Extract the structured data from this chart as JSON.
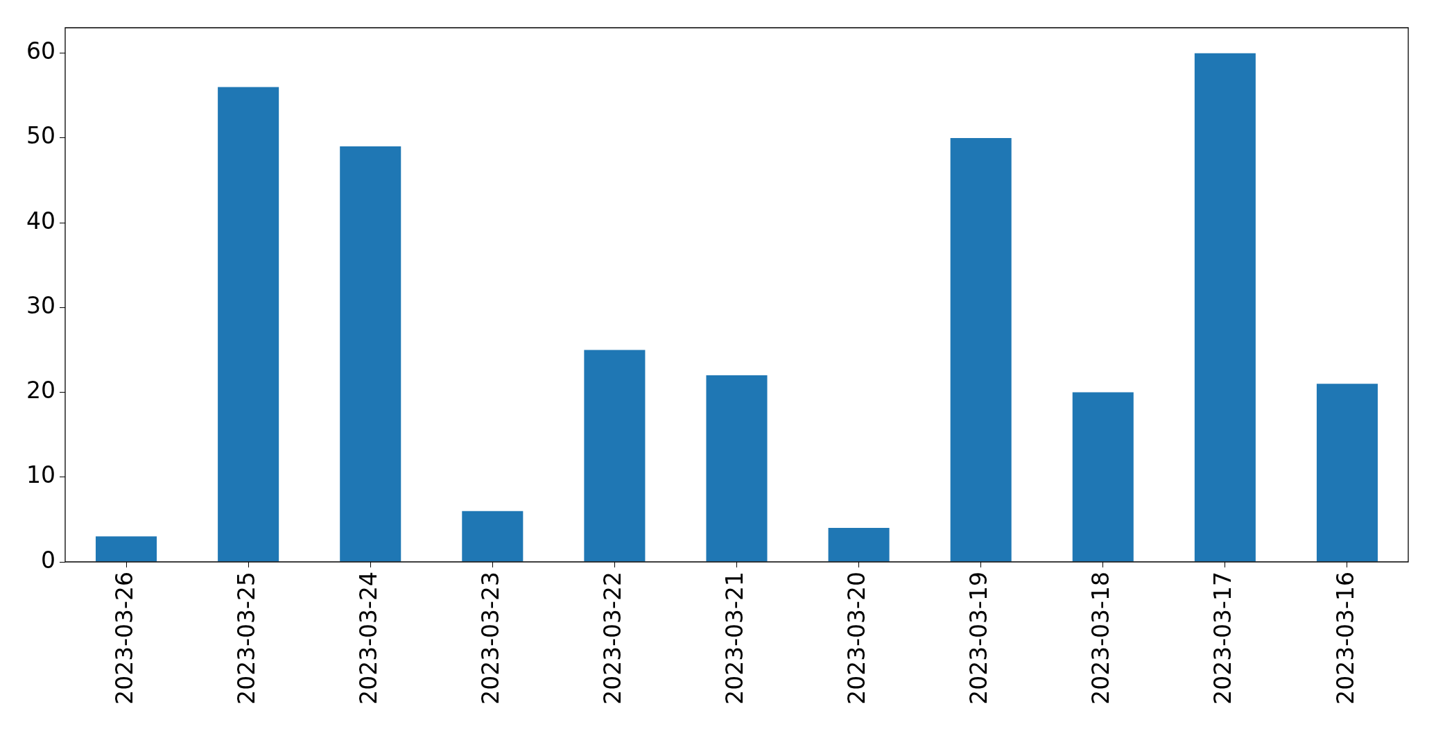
{
  "chart_data": {
    "type": "bar",
    "categories": [
      "2023-03-26",
      "2023-03-25",
      "2023-03-24",
      "2023-03-23",
      "2023-03-22",
      "2023-03-21",
      "2023-03-20",
      "2023-03-19",
      "2023-03-18",
      "2023-03-17",
      "2023-03-16"
    ],
    "values": [
      3,
      56,
      49,
      6,
      25,
      22,
      4,
      50,
      20,
      60,
      21
    ],
    "color": "#1f77b4",
    "ylim": [
      0,
      63
    ],
    "yticks": [
      0,
      10,
      20,
      30,
      40,
      50,
      60
    ],
    "grid": false,
    "legend": false
  }
}
